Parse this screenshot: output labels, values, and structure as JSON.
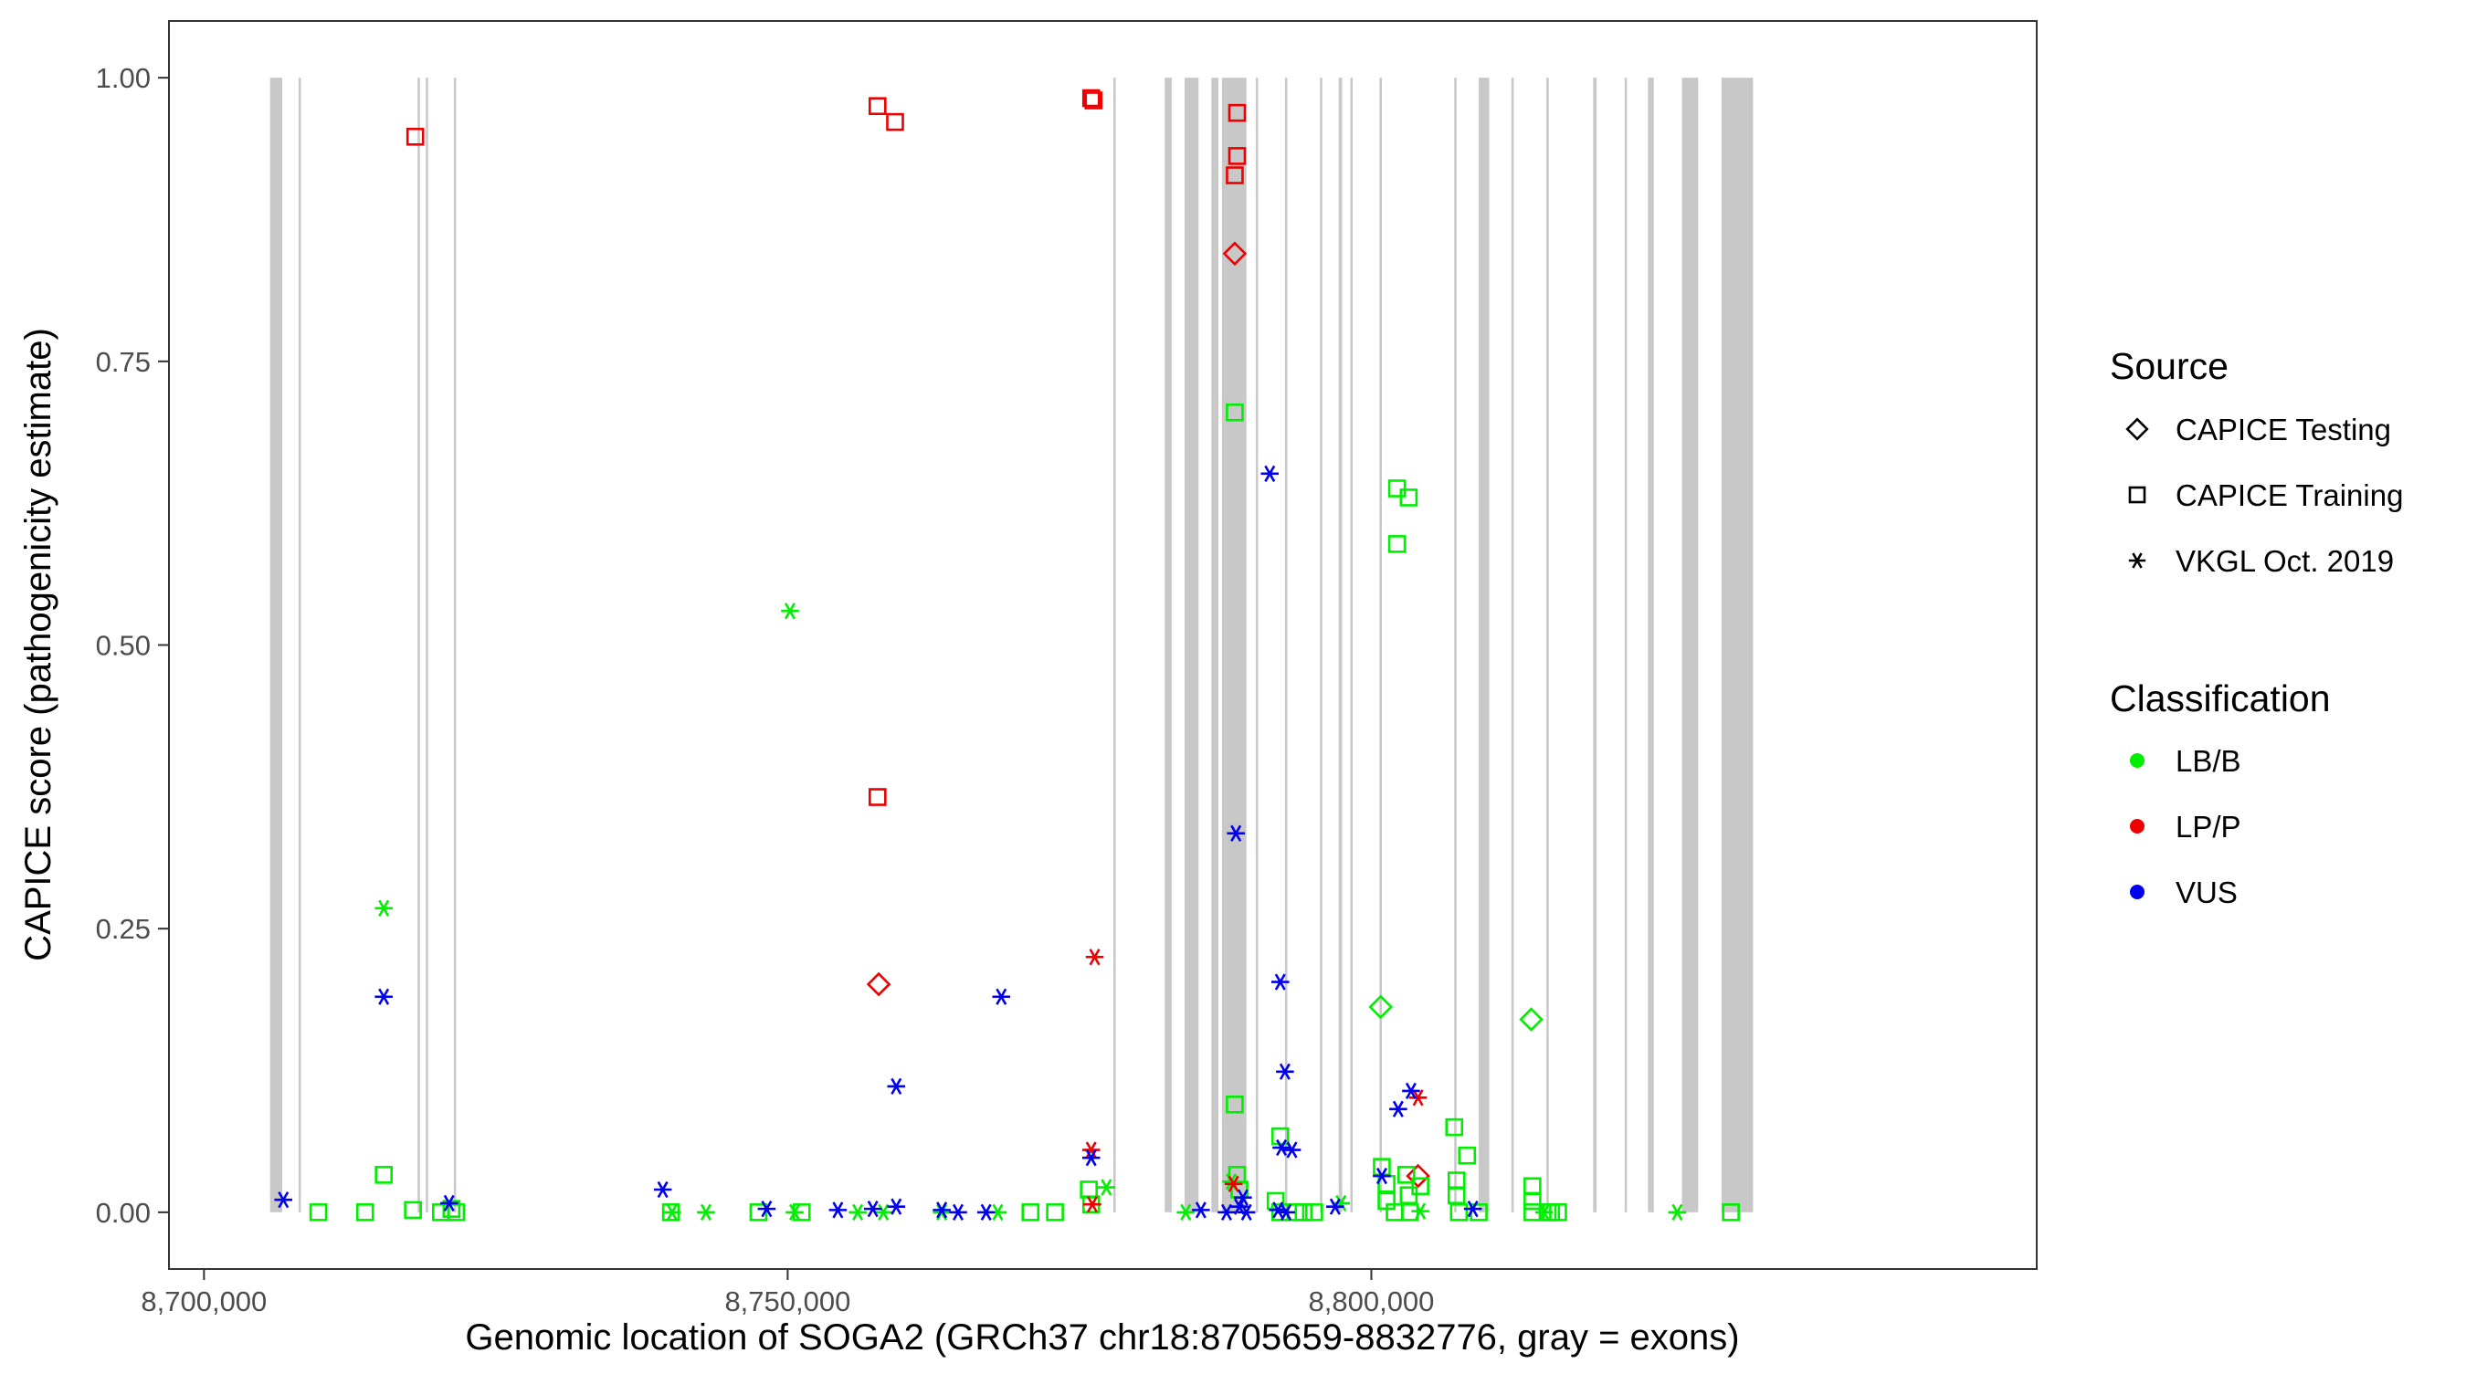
{
  "chart_data": {
    "type": "scatter",
    "title": "",
    "xlabel": "Genomic location of SOGA2 (GRCh37 chr18:8705659-8832776, gray = exons)",
    "ylabel": "CAPICE score (pathogenicity estimate)",
    "xlim": [
      8697000,
      8857000
    ],
    "ylim": [
      -0.05,
      1.05
    ],
    "x_ticks": [
      8700000,
      8750000,
      8800000
    ],
    "x_tick_labels": [
      "8,700,000",
      "8,750,000",
      "8,800,000"
    ],
    "y_ticks": [
      0,
      0.25,
      0.5,
      0.75,
      1.0
    ],
    "y_tick_labels": [
      "0.00",
      "0.25",
      "0.50",
      "0.75",
      "1.00"
    ],
    "grid": false,
    "exon_color": "#c8c8c8",
    "exons": [
      [
        8705659,
        8706700
      ],
      [
        8708100,
        8708300
      ],
      [
        8718300,
        8718500
      ],
      [
        8719000,
        8719200
      ],
      [
        8721400,
        8721600
      ],
      [
        8777900,
        8778100
      ],
      [
        8782300,
        8782900
      ],
      [
        8784000,
        8785200
      ],
      [
        8786300,
        8786900
      ],
      [
        8787200,
        8789300
      ],
      [
        8790100,
        8790300
      ],
      [
        8792600,
        8792800
      ],
      [
        8795600,
        8795800
      ],
      [
        8797200,
        8797500
      ],
      [
        8798200,
        8798400
      ],
      [
        8800700,
        8800900
      ],
      [
        8807100,
        8807300
      ],
      [
        8809200,
        8810100
      ],
      [
        8812000,
        8812200
      ],
      [
        8815000,
        8815200
      ],
      [
        8819000,
        8819300
      ],
      [
        8821700,
        8821900
      ],
      [
        8823700,
        8824200
      ],
      [
        8826600,
        8828000
      ],
      [
        8830000,
        8832700
      ]
    ],
    "legend": {
      "placement": "right",
      "source_title": "Source",
      "source_items": [
        {
          "label": "CAPICE Testing",
          "shape": "diamond"
        },
        {
          "label": "CAPICE Training",
          "shape": "square"
        },
        {
          "label": "VKGL Oct. 2019",
          "shape": "asterisk"
        }
      ],
      "class_title": "Classification",
      "class_items": [
        {
          "label": "LB/B",
          "color": "#00ee00"
        },
        {
          "label": "LP/P",
          "color": "#ee0000"
        },
        {
          "label": "VUS",
          "color": "#0000ee"
        }
      ]
    },
    "series": [
      {
        "source": "CAPICE Testing",
        "classification": "LP/P",
        "points": [
          [
            8757800,
            0.201
          ],
          [
            8788300,
            0.845
          ],
          [
            8804000,
            0.032
          ]
        ]
      },
      {
        "source": "CAPICE Testing",
        "classification": "LB/B",
        "points": [
          [
            8800800,
            0.181
          ],
          [
            8813700,
            0.17
          ]
        ]
      },
      {
        "source": "CAPICE Training",
        "classification": "LP/P",
        "points": [
          [
            8718100,
            0.948
          ],
          [
            8757700,
            0.975
          ],
          [
            8759200,
            0.961
          ],
          [
            8757700,
            0.366
          ],
          [
            8776000,
            0.982
          ],
          [
            8776200,
            0.98
          ],
          [
            8788500,
            0.969
          ],
          [
            8788500,
            0.931
          ],
          [
            8788300,
            0.914
          ]
        ]
      },
      {
        "source": "CAPICE Training",
        "classification": "LB/B",
        "points": [
          [
            8709800,
            0
          ],
          [
            8713800,
            0
          ],
          [
            8715400,
            0.033
          ],
          [
            8717900,
            0.002
          ],
          [
            8720300,
            0
          ],
          [
            8721200,
            0.003
          ],
          [
            8721600,
            0
          ],
          [
            8740000,
            0
          ],
          [
            8747500,
            0
          ],
          [
            8751200,
            0
          ],
          [
            8770800,
            0
          ],
          [
            8772900,
            0
          ],
          [
            8775800,
            0.02
          ],
          [
            8776000,
            0.007
          ],
          [
            8788300,
            0.705
          ],
          [
            8788300,
            0.095
          ],
          [
            8788500,
            0.033
          ],
          [
            8788700,
            0.02
          ],
          [
            8791800,
            0.01
          ],
          [
            8792200,
            0.067
          ],
          [
            8792200,
            0
          ],
          [
            8793500,
            0
          ],
          [
            8794200,
            0
          ],
          [
            8795100,
            0
          ],
          [
            8802200,
            0.638
          ],
          [
            8802200,
            0.589
          ],
          [
            8803200,
            0.63
          ],
          [
            8800900,
            0.04
          ],
          [
            8801300,
            0.025
          ],
          [
            8801300,
            0.01
          ],
          [
            8802000,
            0
          ],
          [
            8803000,
            0.033
          ],
          [
            8803200,
            0.015
          ],
          [
            8803300,
            0
          ],
          [
            8804200,
            0.023
          ],
          [
            8807100,
            0.075
          ],
          [
            8808200,
            0.05
          ],
          [
            8807300,
            0.028
          ],
          [
            8807300,
            0.015
          ],
          [
            8807500,
            0
          ],
          [
            8809200,
            0
          ],
          [
            8813800,
            0.023
          ],
          [
            8813800,
            0.01
          ],
          [
            8813800,
            0
          ],
          [
            8815100,
            0
          ],
          [
            8815400,
            0
          ],
          [
            8816000,
            0
          ],
          [
            8830800,
            0
          ]
        ]
      },
      {
        "source": "VKGL Oct. 2019",
        "classification": "LB/B",
        "points": [
          [
            8715400,
            0.268
          ],
          [
            8750200,
            0.53
          ],
          [
            8740100,
            0
          ],
          [
            8743000,
            0
          ],
          [
            8750600,
            0
          ],
          [
            8756000,
            0
          ],
          [
            8758200,
            0
          ],
          [
            8763200,
            0
          ],
          [
            8768000,
            0
          ],
          [
            8777300,
            0.022
          ],
          [
            8784100,
            0
          ],
          [
            8788000,
            0.027
          ],
          [
            8797400,
            0.008
          ],
          [
            8814800,
            0
          ],
          [
            8826200,
            0
          ],
          [
            8804200,
            0.001
          ]
        ]
      },
      {
        "source": "VKGL Oct. 2019",
        "classification": "LP/P",
        "points": [
          [
            8776300,
            0.225
          ],
          [
            8776000,
            0.055
          ],
          [
            8776100,
            0.007
          ],
          [
            8788200,
            0.025
          ],
          [
            8804000,
            0.101
          ]
        ]
      },
      {
        "source": "VKGL Oct. 2019",
        "classification": "VUS",
        "points": [
          [
            8706800,
            0.011
          ],
          [
            8715400,
            0.19
          ],
          [
            8721000,
            0.008
          ],
          [
            8739300,
            0.02
          ],
          [
            8748200,
            0.003
          ],
          [
            8754300,
            0.002
          ],
          [
            8757300,
            0.003
          ],
          [
            8759300,
            0.005
          ],
          [
            8759300,
            0.111
          ],
          [
            8763200,
            0.002
          ],
          [
            8764600,
            0
          ],
          [
            8767000,
            0
          ],
          [
            8768300,
            0.19
          ],
          [
            8776000,
            0.048
          ],
          [
            8785400,
            0.002
          ],
          [
            8787600,
            0
          ],
          [
            8788400,
            0.334
          ],
          [
            8788700,
            0.005
          ],
          [
            8789000,
            0.013
          ],
          [
            8789300,
            0
          ],
          [
            8791300,
            0.651
          ],
          [
            8792200,
            0.203
          ],
          [
            8792600,
            0.124
          ],
          [
            8792300,
            0.057
          ],
          [
            8793200,
            0.055
          ],
          [
            8792000,
            0.002
          ],
          [
            8792700,
            0
          ],
          [
            8796900,
            0.005
          ],
          [
            8800900,
            0.032
          ],
          [
            8802300,
            0.091
          ],
          [
            8803400,
            0.107
          ],
          [
            8808700,
            0.003
          ]
        ]
      }
    ]
  }
}
